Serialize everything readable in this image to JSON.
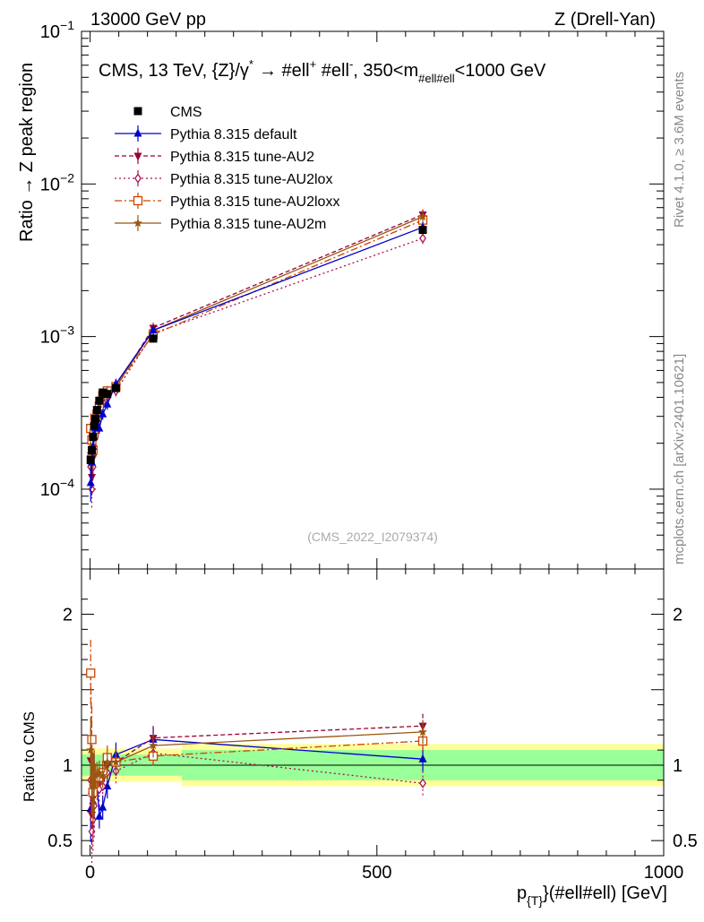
{
  "header": {
    "left": "13000 GeV pp",
    "right": "Z (Drell-Yan)"
  },
  "side": {
    "rivet": "Rivet 4.1.0, ≥ 3.6M events",
    "mcplots": "mcplots.cern.ch [arXiv:2401.10621]"
  },
  "colors": {
    "cms": "#000000",
    "default": "#0000cc",
    "au2": "#990033",
    "au2lox": "#aa1155",
    "au2loxx": "#cc4400",
    "au2m": "#995511",
    "band_inner": "#99ff99",
    "band_outer": "#ffff99"
  },
  "chart_data": [
    {
      "id": "main",
      "type": "line",
      "title": "CMS, 13 TeV, {Z}/γ* → #ell⁺ #ell⁻, 350<m#ell#ell<1000 GeV",
      "title_parts": {
        "main": "CMS, 13 TeV, {Z}/γ",
        "star": "*",
        "arrow": "→  #ell",
        "plus": "+",
        "mid": " #ell",
        "minus": "-",
        "range": ", 350<m",
        "sub": "#ell#ell",
        "end": "<1000 GeV"
      },
      "ylabel": "Ratio → Z peak region",
      "xlabel": "p{T}(#ell#ell) [GeV]",
      "xlabel_parts": {
        "p": "p",
        "sub": "{T}",
        "rest": "}(#ell#ell) [GeV]"
      },
      "yscale": "log",
      "xlim": [
        -15,
        1000
      ],
      "ylim": [
        3e-05,
        0.1
      ],
      "yticks": [
        {
          "v": 0.0001,
          "base": "10",
          "exp": "−4"
        },
        {
          "v": 0.001,
          "base": "10",
          "exp": "−3"
        },
        {
          "v": 0.01,
          "base": "10",
          "exp": "−2"
        },
        {
          "v": 0.1,
          "base": "10",
          "exp": "−1"
        }
      ],
      "watermark": "(CMS_2022_I2079374)",
      "x": [
        1,
        3,
        5,
        7,
        9,
        12,
        16,
        22,
        30,
        45,
        110,
        580
      ],
      "series": [
        {
          "key": "cms",
          "name": "CMS",
          "marker": "square",
          "values": [
            0.000155,
            0.00018,
            0.00022,
            0.00026,
            0.00029,
            0.00033,
            0.00038,
            0.00043,
            0.00042,
            0.00046,
            0.00097,
            0.005
          ]
        },
        {
          "key": "default",
          "name": "Pythia 8.315 default",
          "marker": "triangle-up",
          "dash": "",
          "values": [
            0.00011,
            0.00015,
            0.00019,
            0.00022,
            0.00025,
            0.00029,
            0.00025,
            0.00031,
            0.00036,
            0.00049,
            0.0011,
            0.0052
          ]
        },
        {
          "key": "au2",
          "name": "Pythia 8.315 tune-AU2",
          "marker": "triangle-down",
          "dash": "5,3",
          "values": [
            0.00016,
            0.00012,
            0.00016,
            0.00021,
            0.00025,
            0.00029,
            0.00034,
            0.00039,
            0.00042,
            0.00047,
            0.00114,
            0.0063
          ]
        },
        {
          "key": "au2lox",
          "name": "Pythia 8.315 tune-AU2lox",
          "marker": "diamond",
          "dash": "2,3",
          "values": [
            0.00014,
            0.0001,
            0.00014,
            0.00019,
            0.00024,
            0.00028,
            0.00032,
            0.00037,
            0.0004,
            0.00044,
            0.00105,
            0.0044
          ]
        },
        {
          "key": "au2loxx",
          "name": "Pythia 8.315 tune-AU2loxx",
          "marker": "square-open",
          "dash": "8,3,2,3",
          "values": [
            0.00025,
            0.00021,
            0.00018,
            0.00023,
            0.00027,
            0.00031,
            0.00035,
            0.00041,
            0.00044,
            0.00047,
            0.00103,
            0.0058
          ]
        },
        {
          "key": "au2m",
          "name": "Pythia 8.315 tune-AU2m",
          "marker": "star",
          "dash": "",
          "values": [
            0.00017,
            0.00016,
            0.00019,
            0.00023,
            0.00027,
            0.00031,
            0.00036,
            0.0004,
            0.00043,
            0.00047,
            0.0011,
            0.0061
          ]
        }
      ]
    },
    {
      "id": "ratio",
      "type": "line",
      "ylabel": "Ratio to CMS",
      "xlim": [
        -15,
        1000
      ],
      "ylim": [
        0.4,
        2.3
      ],
      "yticks": [
        {
          "v": 0.5,
          "label": "0.5"
        },
        {
          "v": 1,
          "label": "1"
        },
        {
          "v": 2,
          "label": "2"
        }
      ],
      "xticks": [
        {
          "v": 0,
          "label": "0"
        },
        {
          "v": 500,
          "label": "500"
        },
        {
          "v": 1000,
          "label": "1000"
        }
      ],
      "bands": [
        {
          "x0": -15,
          "x1": 160,
          "inner": [
            0.93,
            1.07
          ],
          "outer": [
            0.89,
            1.11
          ]
        },
        {
          "x0": 160,
          "x1": 1000,
          "inner": [
            0.9,
            1.1
          ],
          "outer": [
            0.86,
            1.14
          ]
        }
      ],
      "series": [
        {
          "key": "default",
          "values": [
            0.71,
            0.83,
            0.86,
            0.85,
            0.86,
            0.88,
            0.66,
            0.72,
            0.86,
            1.07,
            1.17,
            1.04
          ]
        },
        {
          "key": "au2",
          "values": [
            1.03,
            0.67,
            0.73,
            0.81,
            0.86,
            0.88,
            0.89,
            0.91,
            1.0,
            1.02,
            1.18,
            1.26
          ]
        },
        {
          "key": "au2lox",
          "values": [
            0.9,
            0.56,
            0.64,
            0.73,
            0.83,
            0.85,
            0.84,
            0.86,
            0.95,
            0.96,
            1.08,
            0.88
          ]
        },
        {
          "key": "au2loxx",
          "values": [
            1.61,
            1.17,
            0.82,
            0.88,
            0.93,
            0.94,
            0.92,
            0.95,
            1.05,
            1.02,
            1.06,
            1.16
          ]
        },
        {
          "key": "au2m",
          "values": [
            1.1,
            0.89,
            0.86,
            0.88,
            0.93,
            0.94,
            0.95,
            0.93,
            1.02,
            1.02,
            1.13,
            1.22
          ]
        }
      ]
    }
  ]
}
